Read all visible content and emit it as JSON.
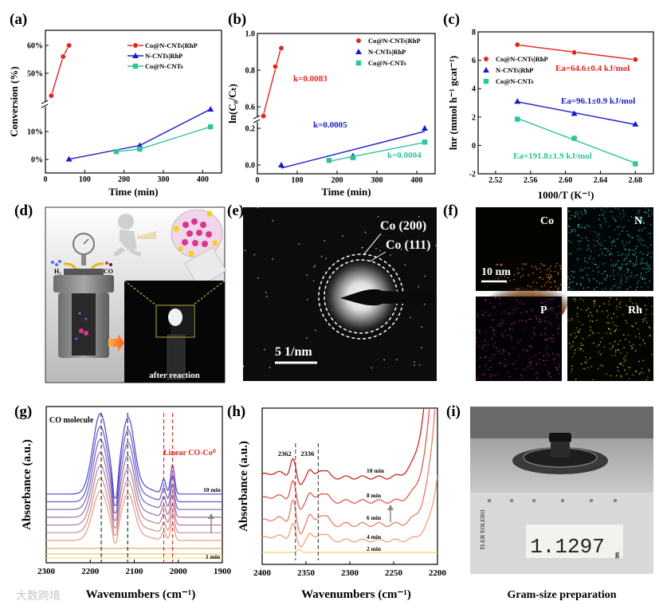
{
  "panels": {
    "a": "(a)",
    "b": "(b)",
    "c": "(c)",
    "d": "(d)",
    "e": "(e)",
    "f": "(f)",
    "g": "(g)",
    "h": "(h)",
    "i": "(i)"
  },
  "chart_data": [
    {
      "id": "a",
      "type": "line",
      "xlabel": "Time (min)",
      "ylabel": "Conversion (%)",
      "xticks": [
        0,
        100,
        200,
        300,
        400
      ],
      "yticks": [
        0,
        10,
        50,
        60
      ],
      "ytick_labels": [
        "0%",
        "10%",
        "50%",
        "60%"
      ],
      "y_axis_break": [
        20,
        40
      ],
      "legend": "top-right",
      "series": [
        {
          "name": "Co@N-CNTs|RhP",
          "color": "#e52420",
          "marker": "circle",
          "x": [
            15,
            45,
            60
          ],
          "y": [
            42,
            56,
            60
          ]
        },
        {
          "name": "N-CNTs|RhP",
          "color": "#1a1acc",
          "marker": "triangle",
          "x": [
            60,
            240,
            420
          ],
          "y": [
            0.1,
            5,
            18
          ]
        },
        {
          "name": "Co@N-CNTs",
          "color": "#2ec49a",
          "marker": "square",
          "x": [
            180,
            240,
            420
          ],
          "y": [
            2.8,
            3.7,
            11.7
          ]
        }
      ]
    },
    {
      "id": "b",
      "type": "scatter",
      "xlabel": "Time (min)",
      "ylabel": "ln(C₀/Cₜ)",
      "xticks": [
        0,
        100,
        200,
        300,
        400
      ],
      "yticks": [
        0,
        0.2,
        0.6,
        0.8,
        1.0
      ],
      "ytick_labels": [
        "0.0",
        "0.2",
        "0.6",
        "0.8",
        "1.0"
      ],
      "y_axis_break": [
        0.3,
        0.5
      ],
      "legend": "top-right",
      "fit": "linear",
      "series": [
        {
          "name": "Co@N-CNTs|RhP",
          "color": "#e52420",
          "marker": "circle",
          "x": [
            15,
            45,
            60
          ],
          "y": [
            0.55,
            0.82,
            0.92
          ],
          "annotation": "k=0.0083"
        },
        {
          "name": "N-CNTs|RhP",
          "color": "#1a1acc",
          "marker": "triangle",
          "x": [
            60,
            240,
            420
          ],
          "y": [
            0.0,
            0.05,
            0.2
          ],
          "annotation": "k=0.0005"
        },
        {
          "name": "Co@N-CNTs",
          "color": "#2ec49a",
          "marker": "square",
          "x": [
            180,
            240,
            420
          ],
          "y": [
            0.025,
            0.04,
            0.125
          ],
          "annotation": "k=0.0004"
        }
      ]
    },
    {
      "id": "c",
      "type": "scatter",
      "xlabel": "1000/T (K⁻¹)",
      "ylabel": "lnr (mmol h⁻¹ gcat⁻¹)",
      "xticks": [
        2.52,
        2.56,
        2.6,
        2.64,
        2.68
      ],
      "xtick_labels": [
        "2.52",
        "2.56",
        "2.60",
        "2.64",
        "2.68"
      ],
      "yticks": [
        -2,
        0,
        2,
        4,
        6,
        8
      ],
      "ytick_labels": [
        "-2",
        "0",
        "2",
        "4",
        "6",
        "8"
      ],
      "legend": "top-left",
      "fit": "linear",
      "series": [
        {
          "name": "Co@N-CNTs|RhP",
          "color": "#e52420",
          "marker": "circle",
          "x": [
            2.545,
            2.61,
            2.68
          ],
          "y": [
            7.1,
            6.55,
            6.05
          ],
          "annotation": "Ea=64.6±0.4 kJ/mol"
        },
        {
          "name": "N-CNTs|RhP",
          "color": "#1a1acc",
          "marker": "triangle",
          "x": [
            2.545,
            2.61,
            2.68
          ],
          "y": [
            3.1,
            2.25,
            1.5
          ],
          "annotation": "Ea=96.1±0.9 kJ/mol"
        },
        {
          "name": "Co@N-CNTs",
          "color": "#2ec49a",
          "marker": "square",
          "x": [
            2.545,
            2.61,
            2.68
          ],
          "y": [
            1.85,
            0.5,
            -1.3
          ],
          "annotation": "Ea=191.8±1.9 kJ/mol"
        }
      ]
    },
    {
      "id": "g",
      "type": "line",
      "xlabel": "Wavenumbers (cm⁻¹)",
      "ylabel": "Absorbance (a.u.)",
      "xticks": [
        2300,
        2200,
        2100,
        2000,
        1900
      ],
      "xlim": [
        2300,
        1900
      ],
      "peaks": [
        2175,
        2115,
        2033,
        2013
      ],
      "annotations": [
        "CO molecule",
        "Linear CO-Co⁰"
      ],
      "curve_labels": [
        "10 min",
        "1 min"
      ],
      "n_curves": 10
    },
    {
      "id": "h",
      "type": "line",
      "xlabel": "Wavenumbers (cm⁻¹)",
      "ylabel": "Absorbance (a.u.)",
      "xticks": [
        2400,
        2350,
        2300,
        2250,
        2200
      ],
      "xlim": [
        2400,
        2200
      ],
      "peaks": [
        2362,
        2336
      ],
      "peak_labels": [
        "2362",
        "2336"
      ],
      "curve_labels": [
        "10 min",
        "8 min",
        "6 min",
        "4 min",
        "2 min"
      ]
    }
  ],
  "d": {
    "h2": "H₂",
    "co": "CO",
    "caption": "after reaction"
  },
  "e": {
    "ring_200": "Co (200)",
    "ring_111": "Co (111)",
    "scale": "5 1/nm"
  },
  "f": {
    "scale": "10 nm",
    "tiles": [
      {
        "element": "Co",
        "color": "#e07a1c"
      },
      {
        "element": "N",
        "color": "#2cc6c6"
      },
      {
        "element": "P",
        "color": "#c02cc0"
      },
      {
        "element": "Rh",
        "color": "#d6d21c"
      }
    ]
  },
  "i": {
    "display": "1.1297",
    "unit": "g",
    "brand": "TLER TOLEDO",
    "caption": "Gram-size preparation"
  },
  "watermark": "大数跨境"
}
